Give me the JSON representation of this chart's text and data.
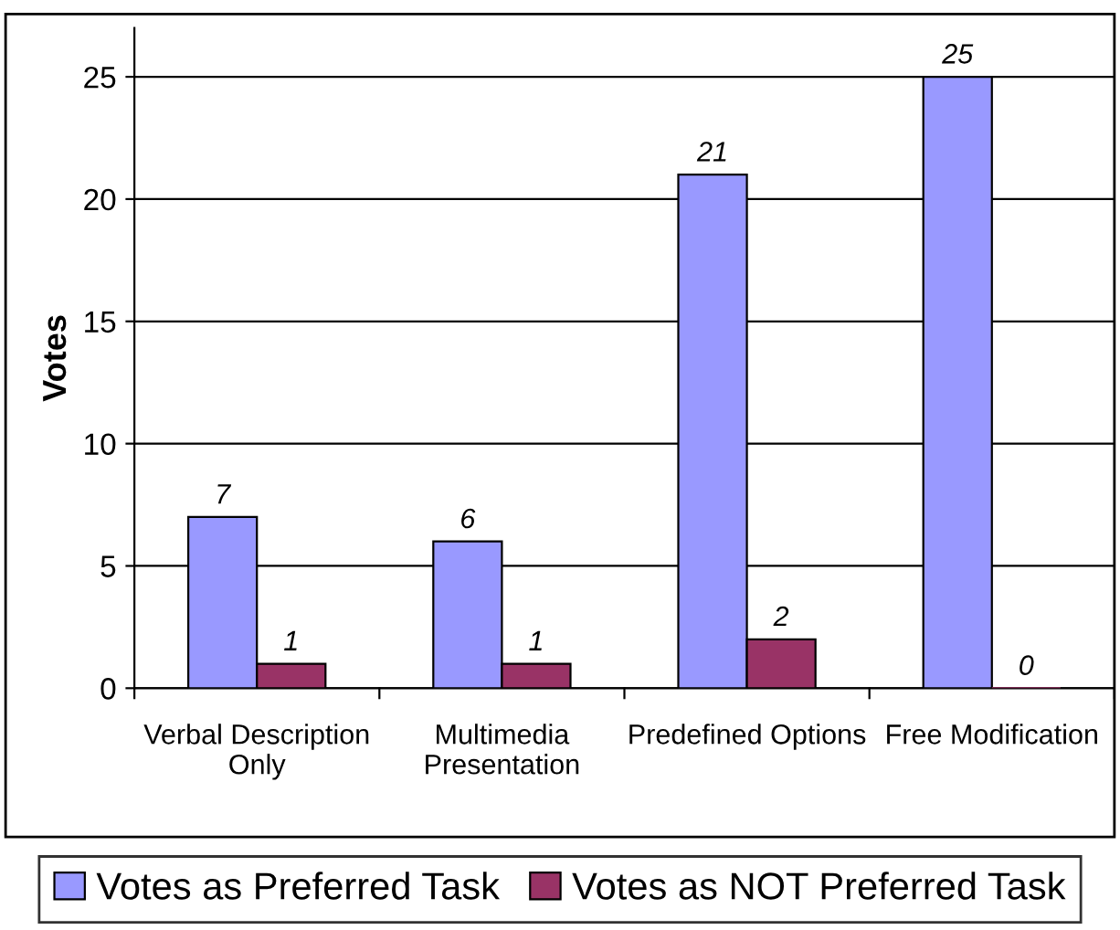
{
  "chart_data": {
    "type": "bar",
    "ylabel": "Votes",
    "categories": [
      "Verbal Description\nOnly",
      "Multimedia\nPresentation",
      "Predefined Options",
      "Free Modification"
    ],
    "series": [
      {
        "name": "Votes as Preferred Task",
        "color": "#9999ff",
        "values": [
          7,
          6,
          21,
          25
        ]
      },
      {
        "name": "Votes as NOT Preferred Task",
        "color": "#993366",
        "values": [
          1,
          1,
          2,
          0
        ]
      }
    ],
    "ylim": [
      0,
      27
    ],
    "yticks": [
      0,
      5,
      10,
      15,
      20,
      25
    ],
    "grid": "y",
    "legend": "bottom",
    "data_labels": true
  }
}
